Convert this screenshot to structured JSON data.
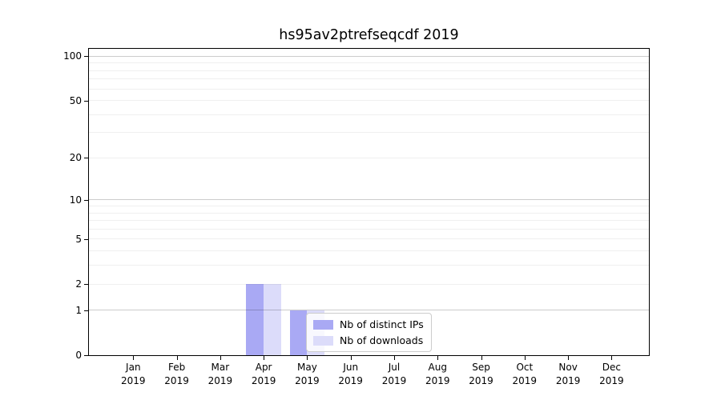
{
  "title": "hs95av2ptrefseqcdf 2019",
  "chart_data": {
    "type": "bar",
    "title": "hs95av2ptrefseqcdf 2019",
    "categories": [
      "Jan",
      "Feb",
      "Mar",
      "Apr",
      "May",
      "Jun",
      "Jul",
      "Aug",
      "Sep",
      "Oct",
      "Nov",
      "Dec"
    ],
    "x_tick_second_line": "2019",
    "series": [
      {
        "name": "Nb of distinct IPs",
        "color": "#a9a9f4",
        "values": [
          0,
          0,
          0,
          2,
          1,
          0,
          0,
          0,
          0,
          0,
          0,
          0
        ]
      },
      {
        "name": "Nb of downloads",
        "color": "#dcdcfa",
        "values": [
          0,
          0,
          0,
          2,
          1,
          0,
          0,
          0,
          0,
          0,
          0,
          0
        ]
      }
    ],
    "xlabel": "",
    "ylabel": "",
    "yscale": "log1p",
    "ylim": [
      0,
      113
    ],
    "y_ticks": [
      0,
      1,
      2,
      5,
      10,
      20,
      50,
      100
    ],
    "minor_gridlines": [
      2,
      3,
      4,
      5,
      6,
      7,
      8,
      9,
      20,
      30,
      40,
      50,
      60,
      70,
      80,
      90
    ],
    "major_gridlines": [
      1,
      10,
      100
    ],
    "grid": "horizontal, drawn over bars",
    "legend_position": "lower right of plot, overlapping May bar"
  },
  "legend": {
    "items": [
      {
        "label": "Nb of distinct IPs",
        "color": "#a9a9f4"
      },
      {
        "label": "Nb of downloads",
        "color": "#dcdcfa"
      }
    ]
  }
}
